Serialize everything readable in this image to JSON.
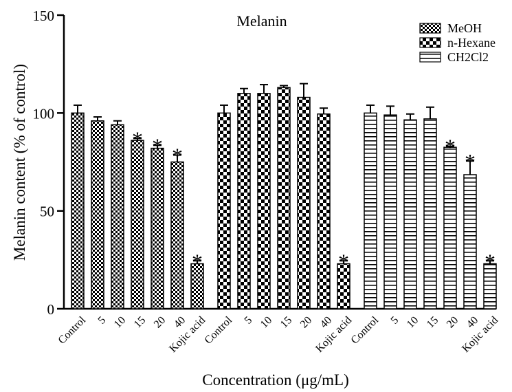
{
  "chart_data": {
    "type": "bar",
    "title": "Melanin",
    "xlabel": "Concentration (μg/mL)",
    "ylabel": "Melanin content (% of control)",
    "ylim": [
      0,
      150
    ],
    "yticks": [
      0,
      50,
      100,
      150
    ],
    "grid": false,
    "legend_position": "top-right",
    "categories": [
      "Control",
      "5",
      "10",
      "15",
      "20",
      "40",
      "Kojic acid"
    ],
    "significance_marker": "*",
    "series": [
      {
        "name": "MeOH",
        "pattern": "checker-fine",
        "values": [
          100,
          96,
          94,
          86,
          82,
          75,
          23
        ],
        "errors": [
          4,
          2,
          2,
          1,
          1.5,
          3.5,
          1.5
        ],
        "significant": [
          false,
          false,
          false,
          true,
          true,
          true,
          true
        ]
      },
      {
        "name": "n-Hexane",
        "pattern": "checker-coarse",
        "values": [
          100,
          110,
          110,
          113,
          108,
          99.5,
          23
        ],
        "errors": [
          4,
          2.5,
          4.5,
          1,
          7,
          3,
          1.5
        ],
        "significant": [
          false,
          false,
          false,
          false,
          false,
          false,
          true
        ]
      },
      {
        "name": "CH2Cl2",
        "pattern": "horizontal-lines",
        "values": [
          100,
          99,
          96.5,
          97,
          82.5,
          68.5,
          23
        ],
        "errors": [
          4,
          4.5,
          3,
          6,
          0.5,
          7,
          1.5
        ],
        "significant": [
          false,
          false,
          false,
          false,
          true,
          true,
          true
        ]
      }
    ]
  }
}
